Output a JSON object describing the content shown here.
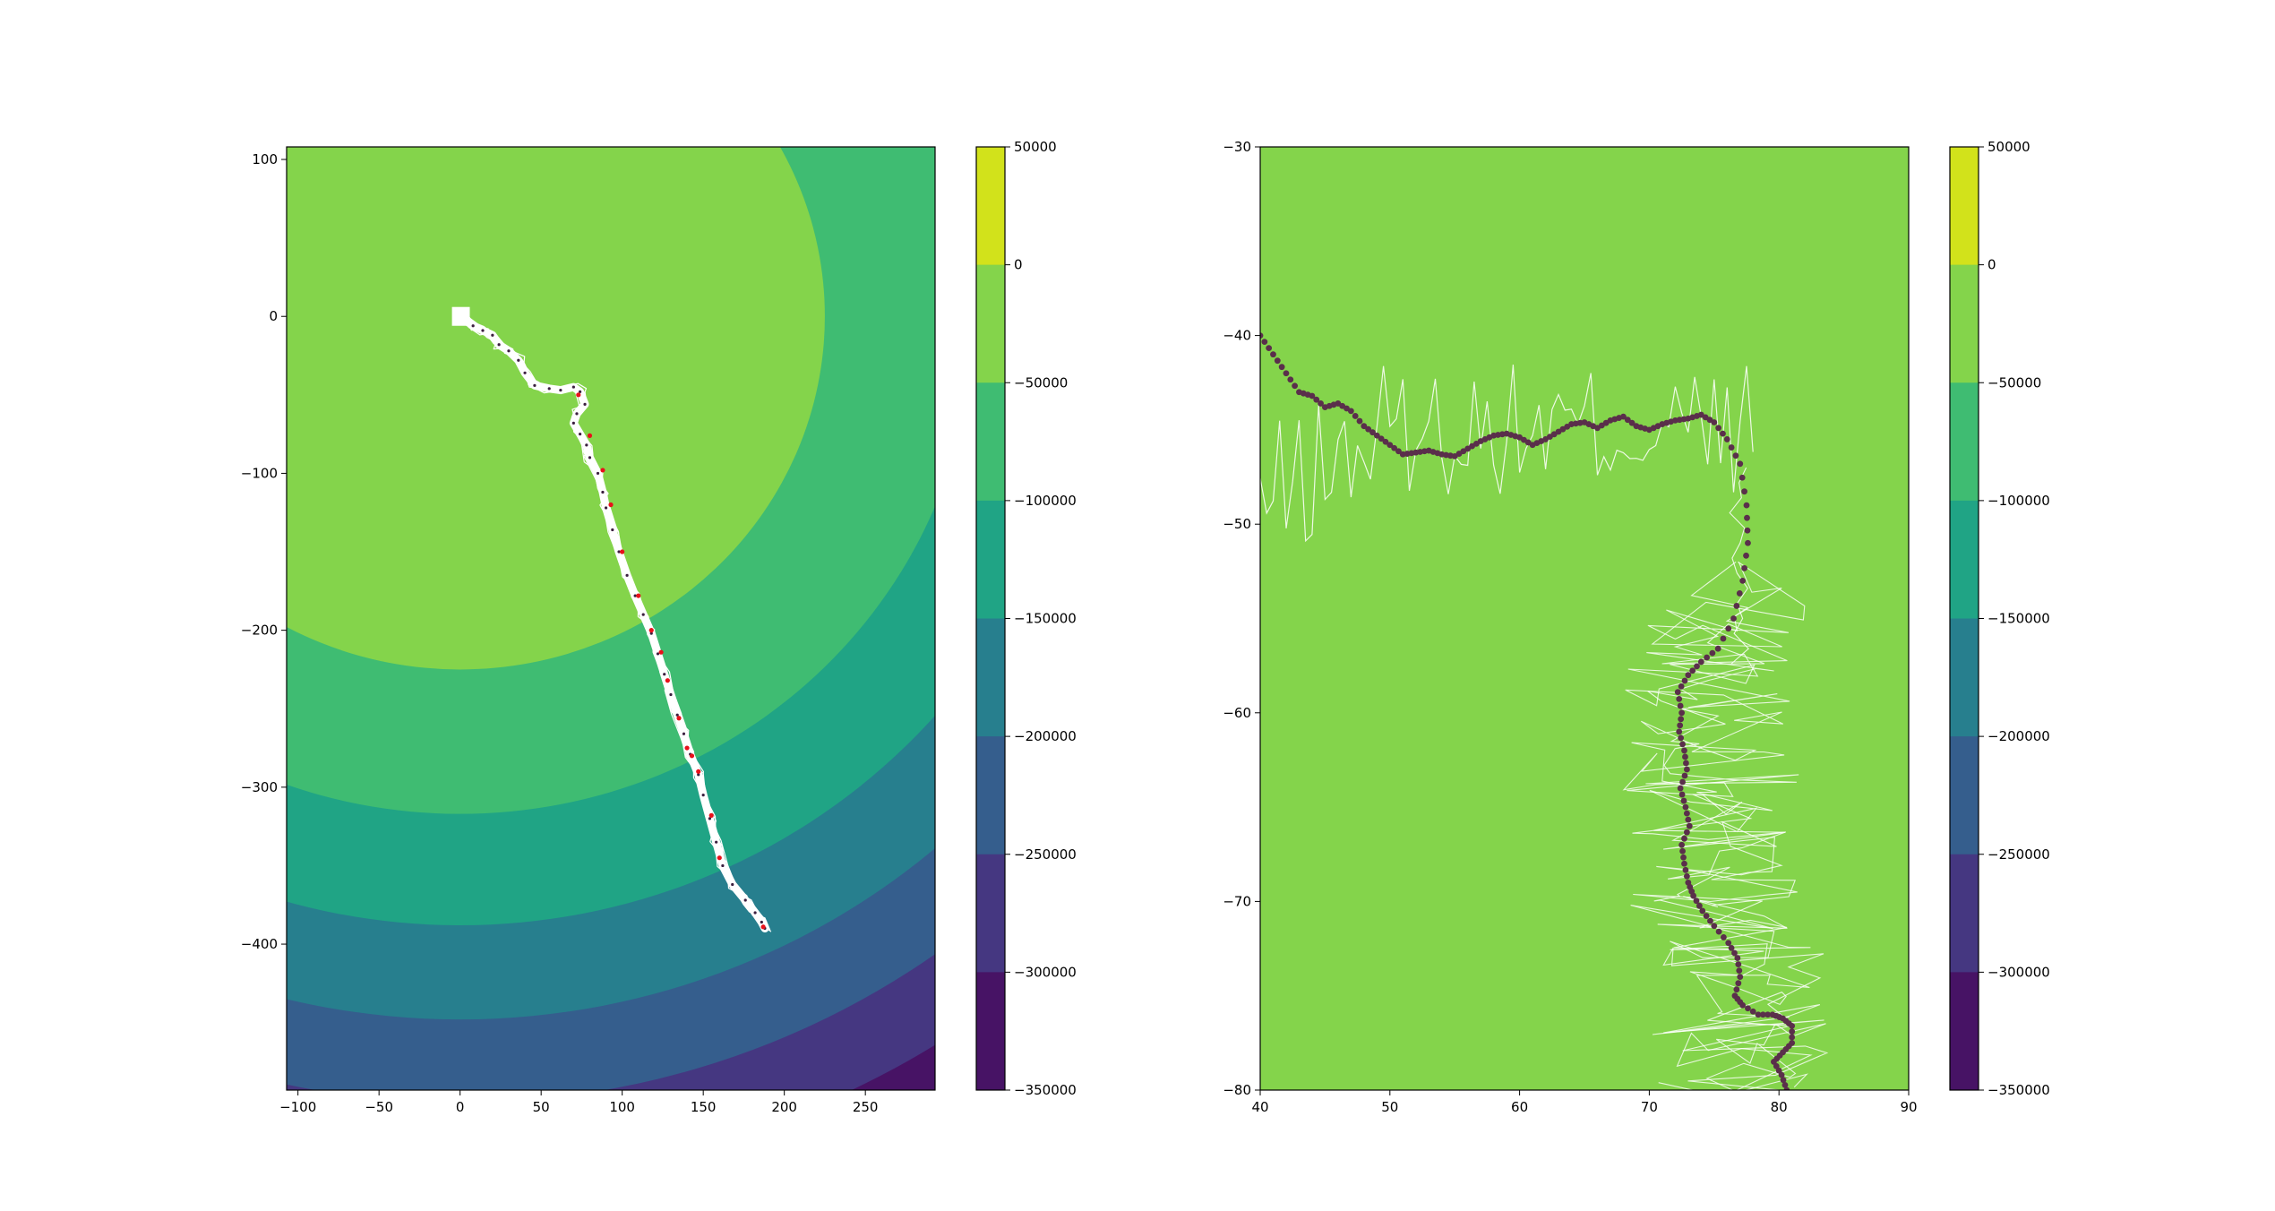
{
  "chart_data": [
    {
      "type": "contour",
      "title": "",
      "xlabel": "",
      "ylabel": "",
      "xlim": [
        -107,
        293
      ],
      "ylim": [
        -493,
        108
      ],
      "x_ticks": [
        -100,
        -50,
        0,
        50,
        100,
        150,
        200,
        250
      ],
      "y_ticks": [
        100,
        0,
        -100,
        -200,
        -300,
        -400
      ],
      "contour_center": [
        0,
        0
      ],
      "contour_radii": [
        225,
        317,
        388,
        448,
        501,
        549
      ],
      "level_colors": [
        "#84d44b",
        "#3fbc72",
        "#20a485",
        "#277f8e",
        "#355e8d",
        "#453781"
      ],
      "grid": false,
      "trajectory_path": [
        [
          0,
          0
        ],
        [
          8,
          -6
        ],
        [
          14,
          -9
        ],
        [
          20,
          -12
        ],
        [
          24,
          -18
        ],
        [
          30,
          -22
        ],
        [
          36,
          -28
        ],
        [
          40,
          -36
        ],
        [
          46,
          -44
        ],
        [
          55,
          -46
        ],
        [
          62,
          -47
        ],
        [
          70,
          -45
        ],
        [
          74,
          -48
        ],
        [
          77,
          -56
        ],
        [
          72,
          -62
        ],
        [
          70,
          -68
        ],
        [
          74,
          -75
        ],
        [
          78,
          -82
        ],
        [
          80,
          -90
        ],
        [
          85,
          -100
        ],
        [
          88,
          -112
        ],
        [
          90,
          -122
        ],
        [
          94,
          -136
        ],
        [
          98,
          -150
        ],
        [
          103,
          -165
        ],
        [
          108,
          -178
        ],
        [
          113,
          -190
        ],
        [
          118,
          -202
        ],
        [
          122,
          -215
        ],
        [
          126,
          -228
        ],
        [
          130,
          -241
        ],
        [
          134,
          -254
        ],
        [
          138,
          -266
        ],
        [
          142,
          -279
        ],
        [
          147,
          -292
        ],
        [
          150,
          -305
        ],
        [
          154,
          -320
        ],
        [
          158,
          -335
        ],
        [
          162,
          -350
        ],
        [
          168,
          -362
        ],
        [
          176,
          -372
        ],
        [
          182,
          -380
        ],
        [
          186,
          -386
        ],
        [
          188,
          -390
        ]
      ],
      "red_points": [
        [
          73,
          -50
        ],
        [
          80,
          -76
        ],
        [
          88,
          -98
        ],
        [
          93,
          -120
        ],
        [
          100,
          -150
        ],
        [
          110,
          -178
        ],
        [
          118,
          -200
        ],
        [
          124,
          -214
        ],
        [
          128,
          -232
        ],
        [
          135,
          -256
        ],
        [
          140,
          -275
        ],
        [
          143,
          -280
        ],
        [
          147,
          -290
        ],
        [
          155,
          -318
        ],
        [
          160,
          -345
        ],
        [
          187,
          -389
        ]
      ],
      "colorbar": {
        "ticks": [
          50000,
          0,
          -50000,
          -100000,
          -150000,
          -200000,
          -250000,
          -300000,
          -350000
        ],
        "tick_labels": [
          "50000",
          "0",
          "−50000",
          "−100000",
          "−150000",
          "−200000",
          "−250000",
          "−300000",
          "−350000"
        ],
        "band_colors": [
          "#d2e21b",
          "#84d44b",
          "#3fbc72",
          "#20a485",
          "#277f8e",
          "#355e8d",
          "#453781",
          "#471365"
        ]
      }
    },
    {
      "type": "contour",
      "title": "",
      "xlabel": "",
      "ylabel": "",
      "xlim": [
        40,
        90
      ],
      "ylim": [
        -80,
        -30
      ],
      "x_ticks": [
        40,
        50,
        60,
        70,
        80,
        90
      ],
      "y_ticks": [
        -30,
        -40,
        -50,
        -60,
        -70,
        -80
      ],
      "background_color": "#84d44b",
      "grid": false,
      "trajectory_path": [
        [
          40,
          -40
        ],
        [
          41,
          -41
        ],
        [
          42,
          -42
        ],
        [
          43,
          -43
        ],
        [
          44,
          -43.2
        ],
        [
          45,
          -43.8
        ],
        [
          46,
          -43.6
        ],
        [
          47,
          -44
        ],
        [
          48,
          -44.8
        ],
        [
          49,
          -45.3
        ],
        [
          50,
          -45.8
        ],
        [
          51,
          -46.3
        ],
        [
          52,
          -46.2
        ],
        [
          53,
          -46.1
        ],
        [
          54,
          -46.3
        ],
        [
          55,
          -46.4
        ],
        [
          56,
          -46
        ],
        [
          57,
          -45.6
        ],
        [
          58,
          -45.3
        ],
        [
          59,
          -45.2
        ],
        [
          60,
          -45.4
        ],
        [
          61,
          -45.8
        ],
        [
          62,
          -45.5
        ],
        [
          63,
          -45.1
        ],
        [
          64,
          -44.7
        ],
        [
          65,
          -44.6
        ],
        [
          66,
          -44.9
        ],
        [
          67,
          -44.5
        ],
        [
          68,
          -44.3
        ],
        [
          69,
          -44.8
        ],
        [
          70,
          -45
        ],
        [
          71,
          -44.7
        ],
        [
          72,
          -44.5
        ],
        [
          73,
          -44.4
        ],
        [
          74,
          -44.2
        ],
        [
          75,
          -44.6
        ],
        [
          76,
          -45.5
        ],
        [
          77,
          -46.8
        ],
        [
          77.5,
          -49
        ],
        [
          77.6,
          -51
        ],
        [
          77.2,
          -53
        ],
        [
          76.5,
          -55
        ],
        [
          75.3,
          -56.6
        ],
        [
          74,
          -57.3
        ],
        [
          73,
          -58
        ],
        [
          72.2,
          -58.9
        ],
        [
          72.5,
          -60
        ],
        [
          72.3,
          -61
        ],
        [
          72.7,
          -62
        ],
        [
          72.9,
          -63
        ],
        [
          72.4,
          -64
        ],
        [
          72.8,
          -65
        ],
        [
          73.1,
          -66
        ],
        [
          72.5,
          -67
        ],
        [
          72.7,
          -68
        ],
        [
          73,
          -69
        ],
        [
          73.4,
          -69.7
        ],
        [
          74.1,
          -70.5
        ],
        [
          75,
          -71.3
        ],
        [
          76.1,
          -72.2
        ],
        [
          76.8,
          -73
        ],
        [
          77,
          -74
        ],
        [
          76.6,
          -75
        ],
        [
          77.2,
          -75.5
        ],
        [
          78.4,
          -76
        ],
        [
          79.5,
          -76
        ],
        [
          80.3,
          -76.2
        ],
        [
          81,
          -76.6
        ],
        [
          81,
          -77.5
        ],
        [
          80.3,
          -78
        ],
        [
          79.6,
          -78.5
        ],
        [
          80.2,
          -79.2
        ],
        [
          80.6,
          -80
        ]
      ],
      "colorbar": {
        "ticks": [
          50000,
          0,
          -50000,
          -100000,
          -150000,
          -200000,
          -250000,
          -300000,
          -350000
        ],
        "tick_labels": [
          "50000",
          "0",
          "−50000",
          "−100000",
          "−150000",
          "−200000",
          "−250000",
          "−300000",
          "−350000"
        ],
        "band_colors": [
          "#d2e21b",
          "#84d44b",
          "#3fbc72",
          "#20a485",
          "#277f8e",
          "#355e8d",
          "#453781",
          "#471365"
        ]
      }
    }
  ]
}
